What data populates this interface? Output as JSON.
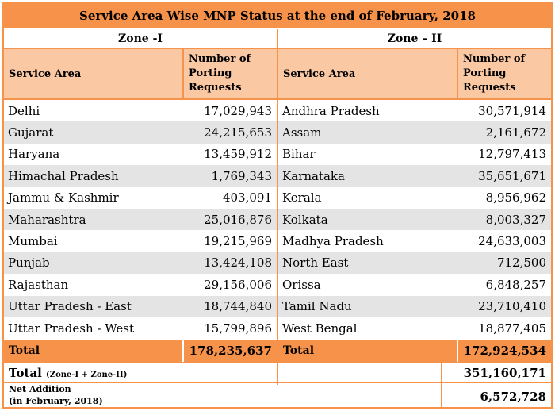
{
  "title": "Service Area Wise MNP Status at the end of February, 2018",
  "zone1": {
    "label": "Zone -I",
    "col_service_area": "Service Area",
    "col_number": "Number of Porting Requests",
    "rows": [
      {
        "area": "Delhi",
        "value": "17,029,943"
      },
      {
        "area": "Gujarat",
        "value": "24,215,653"
      },
      {
        "area": "Haryana",
        "value": "13,459,912"
      },
      {
        "area": "Himachal Pradesh",
        "value": "1,769,343"
      },
      {
        "area": "Jammu & Kashmir",
        "value": "403,091"
      },
      {
        "area": "Maharashtra",
        "value": "25,016,876"
      },
      {
        "area": "Mumbai",
        "value": "19,215,969"
      },
      {
        "area": "Punjab",
        "value": "13,424,108"
      },
      {
        "area": "Rajasthan",
        "value": "29,156,006"
      },
      {
        "area": "Uttar Pradesh - East",
        "value": "18,744,840"
      },
      {
        "area": "Uttar Pradesh - West",
        "value": "15,799,896"
      }
    ],
    "total_label": "Total",
    "total_value": "178,235,637"
  },
  "zone2": {
    "label": "Zone – II",
    "col_service_area": "Service Area",
    "col_number": "Number of Porting Requests",
    "rows": [
      {
        "area": "Andhra Pradesh",
        "value": "30,571,914"
      },
      {
        "area": "Assam",
        "value": "2,161,672"
      },
      {
        "area": "Bihar",
        "value": "12,797,413"
      },
      {
        "area": "Karnataka",
        "value": "35,651,671"
      },
      {
        "area": "Kerala",
        "value": "8,956,962"
      },
      {
        "area": "Kolkata",
        "value": "8,003,327"
      },
      {
        "area": "Madhya Pradesh",
        "value": "24,633,003"
      },
      {
        "area": "North East",
        "value": "712,500"
      },
      {
        "area": "Orissa",
        "value": "6,848,257"
      },
      {
        "area": "Tamil Nadu",
        "value": "23,710,410"
      },
      {
        "area": "West Bengal",
        "value": "18,877,405"
      }
    ],
    "total_label": "Total",
    "total_value": "172,924,534"
  },
  "grand_total": {
    "label": "Total",
    "label_note": "(Zone-I + Zone-II)",
    "value": "351,160,171"
  },
  "net_addition": {
    "label": "Net Addition",
    "label_note": "(in February, 2018)",
    "value": "6,572,728"
  },
  "colors": {
    "accent": "#f7924a",
    "header_fill": "#fbc8a4",
    "stripe": "#e4e4e4"
  }
}
